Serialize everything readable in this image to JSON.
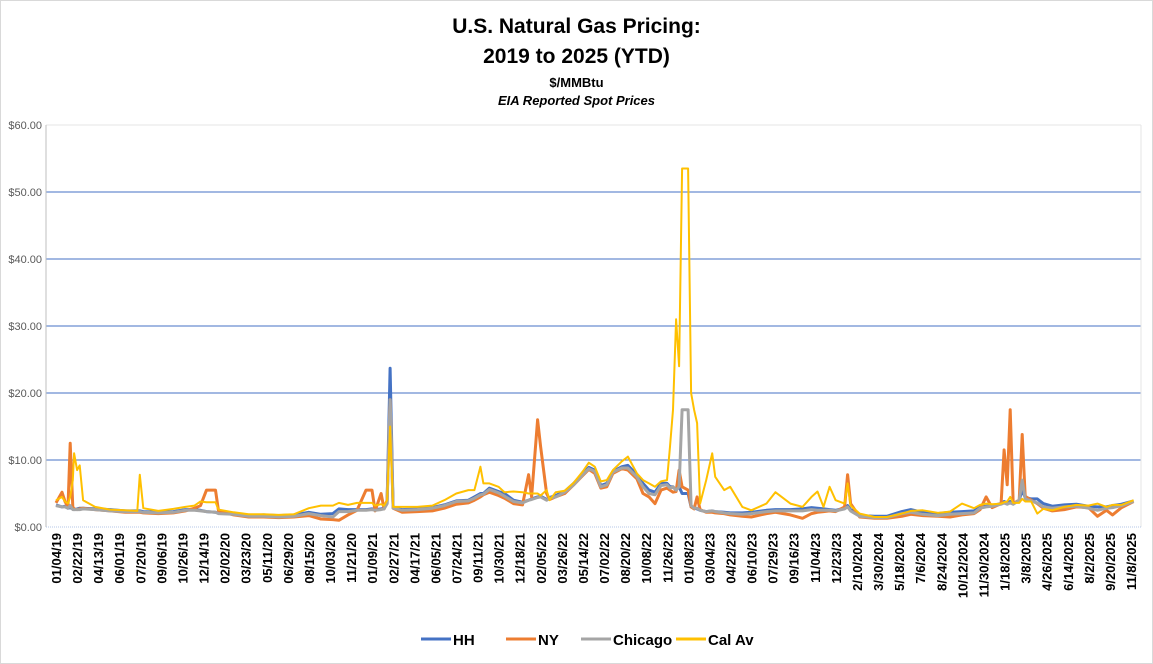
{
  "chart_data": {
    "type": "line",
    "title": "U.S. Natural Gas Pricing:",
    "title_line2": "2019 to 2025 (YTD)",
    "subtitle": "$/MMBtu",
    "subtitle2": "EIA Reported Spot Prices",
    "ylim": [
      0,
      60
    ],
    "yticks": [
      0,
      10,
      20,
      30,
      40,
      50,
      60
    ],
    "ytick_labels": [
      "$0.00",
      "$10.00",
      "$20.00",
      "$30.00",
      "$40.00",
      "$50.00",
      "$60.00"
    ],
    "grid": true,
    "legend_position": "bottom",
    "xtick_labels": [
      "01/04/19",
      "02/22/19",
      "04/13/19",
      "06/01/19",
      "07/20/19",
      "09/06/19",
      "10/26/19",
      "12/14/19",
      "02/02/20",
      "03/23/20",
      "05/11/20",
      "06/29/20",
      "08/15/20",
      "10/03/20",
      "11/21/20",
      "01/09/21",
      "02/27/21",
      "04/17/21",
      "06/05/21",
      "07/24/21",
      "09/11/21",
      "10/30/21",
      "12/18/21",
      "02/05/22",
      "03/26/22",
      "05/14/22",
      "07/02/22",
      "08/20/22",
      "10/08/22",
      "11/26/22",
      "01/08/23",
      "03/04/23",
      "04/22/23",
      "06/10/23",
      "07/29/23",
      "09/16/23",
      "11/04/23",
      "12/23/23",
      "2/10/2024",
      "3/30/2024",
      "5/18/2024",
      "7/6/2024",
      "8/24/2024",
      "10/12/2024",
      "11/30/2024",
      "1/18/2025",
      "3/8/2025",
      "4/26/2025",
      "6/14/2025",
      "8/2/2025",
      "9/20/2025",
      "11/8/2025"
    ],
    "xrange": [
      "2019-01-04",
      "2025-11-08"
    ],
    "series": [
      {
        "name": "HH",
        "color": "#4472C4"
      },
      {
        "name": "NY",
        "color": "#ED7D31"
      },
      {
        "name": "Chicago",
        "color": "#A5A5A5"
      },
      {
        "name": "Cal Av",
        "color": "#FFC000"
      }
    ],
    "columns": [
      "date",
      "HH",
      "NY",
      "Chicago",
      "Cal Av"
    ],
    "rows": [
      [
        "2019-01-04",
        3.3,
        3.6,
        3.2,
        4.0
      ],
      [
        "2019-01-18",
        3.0,
        5.2,
        3.0,
        4.5
      ],
      [
        "2019-01-25",
        3.1,
        3.8,
        3.0,
        3.8
      ],
      [
        "2019-02-01",
        2.8,
        3.0,
        2.8,
        3.5
      ],
      [
        "2019-02-06",
        2.9,
        12.5,
        3.2,
        4.5
      ],
      [
        "2019-02-12",
        2.7,
        3.0,
        2.6,
        7.0
      ],
      [
        "2019-02-15",
        2.6,
        2.7,
        2.6,
        11.0
      ],
      [
        "2019-02-22",
        2.7,
        2.6,
        2.6,
        8.5
      ],
      [
        "2019-02-28",
        2.8,
        2.7,
        2.6,
        9.2
      ],
      [
        "2019-03-08",
        2.8,
        2.8,
        2.7,
        4.0
      ],
      [
        "2019-04-05",
        2.7,
        2.6,
        2.6,
        3.0
      ],
      [
        "2019-05-10",
        2.6,
        2.4,
        2.4,
        2.6
      ],
      [
        "2019-06-14",
        2.4,
        2.2,
        2.3,
        2.5
      ],
      [
        "2019-07-12",
        2.4,
        2.2,
        2.3,
        2.4
      ],
      [
        "2019-07-18",
        2.4,
        2.2,
        2.3,
        7.8
      ],
      [
        "2019-07-26",
        2.3,
        2.1,
        2.2,
        2.8
      ],
      [
        "2019-08-30",
        2.2,
        2.0,
        2.1,
        2.4
      ],
      [
        "2019-10-04",
        2.3,
        2.1,
        2.2,
        2.7
      ],
      [
        "2019-11-01",
        2.6,
        2.4,
        2.5,
        3.0
      ],
      [
        "2019-11-22",
        2.6,
        2.8,
        2.5,
        3.2
      ],
      [
        "2019-12-06",
        2.5,
        3.2,
        2.4,
        3.8
      ],
      [
        "2019-12-20",
        2.3,
        5.5,
        2.3,
        3.7
      ],
      [
        "2020-01-10",
        2.2,
        5.5,
        2.2,
        3.7
      ],
      [
        "2020-01-17",
        2.1,
        2.4,
        2.0,
        2.6
      ],
      [
        "2020-02-21",
        1.9,
        1.8,
        1.9,
        2.2
      ],
      [
        "2020-03-27",
        1.7,
        1.5,
        1.6,
        1.9
      ],
      [
        "2020-05-01",
        1.8,
        1.5,
        1.6,
        1.9
      ],
      [
        "2020-06-05",
        1.7,
        1.4,
        1.5,
        1.8
      ],
      [
        "2020-07-10",
        1.8,
        1.5,
        1.6,
        1.9
      ],
      [
        "2020-08-14",
        2.2,
        1.7,
        2.0,
        2.8
      ],
      [
        "2020-09-11",
        1.9,
        1.2,
        1.7,
        3.2
      ],
      [
        "2020-10-09",
        2.0,
        1.1,
        1.5,
        3.2
      ],
      [
        "2020-10-23",
        2.7,
        1.0,
        2.3,
        3.6
      ],
      [
        "2020-11-13",
        2.6,
        1.8,
        2.3,
        3.3
      ],
      [
        "2020-12-04",
        2.6,
        2.5,
        2.5,
        3.6
      ],
      [
        "2020-12-25",
        2.6,
        5.5,
        2.5,
        3.6
      ],
      [
        "2021-01-08",
        2.7,
        5.5,
        2.6,
        3.6
      ],
      [
        "2021-01-15",
        2.6,
        2.4,
        2.5,
        3.2
      ],
      [
        "2021-01-29",
        2.7,
        5.0,
        2.6,
        3.4
      ],
      [
        "2021-02-05",
        2.8,
        2.7,
        2.7,
        3.2
      ],
      [
        "2021-02-12",
        3.5,
        4.0,
        3.5,
        4.0
      ],
      [
        "2021-02-19",
        23.7,
        19.0,
        19.0,
        15.0
      ],
      [
        "2021-02-26",
        2.9,
        2.8,
        2.8,
        3.0
      ],
      [
        "2021-03-19",
        2.6,
        2.2,
        2.5,
        3.0
      ],
      [
        "2021-04-23",
        2.7,
        2.3,
        2.6,
        3.0
      ],
      [
        "2021-05-28",
        2.9,
        2.4,
        2.8,
        3.2
      ],
      [
        "2021-06-25",
        3.3,
        2.8,
        3.2,
        4.0
      ],
      [
        "2021-07-23",
        3.9,
        3.4,
        3.8,
        5.0
      ],
      [
        "2021-08-20",
        4.0,
        3.6,
        3.9,
        5.5
      ],
      [
        "2021-09-03",
        4.5,
        4.0,
        4.3,
        5.5
      ],
      [
        "2021-09-17",
        5.0,
        4.5,
        4.8,
        9.0
      ],
      [
        "2021-09-24",
        5.0,
        4.8,
        4.9,
        6.5
      ],
      [
        "2021-10-08",
        5.8,
        5.2,
        5.6,
        6.5
      ],
      [
        "2021-10-29",
        5.3,
        4.7,
        5.1,
        6.0
      ],
      [
        "2021-11-12",
        5.0,
        4.3,
        4.6,
        5.2
      ],
      [
        "2021-12-03",
        4.0,
        3.5,
        3.8,
        5.3
      ],
      [
        "2021-12-24",
        3.7,
        3.3,
        3.6,
        5.2
      ],
      [
        "2022-01-07",
        4.0,
        7.8,
        4.0,
        5.0
      ],
      [
        "2022-01-14",
        4.2,
        4.5,
        4.1,
        5.0
      ],
      [
        "2022-01-28",
        4.5,
        16.0,
        4.4,
        5.0
      ],
      [
        "2022-02-04",
        4.6,
        12.0,
        4.5,
        4.7
      ],
      [
        "2022-02-18",
        4.1,
        5.0,
        4.0,
        5.5
      ],
      [
        "2022-02-25",
        4.4,
        4.1,
        4.3,
        4.0
      ],
      [
        "2022-03-11",
        4.7,
        4.5,
        4.5,
        5.2
      ],
      [
        "2022-04-01",
        5.3,
        5.0,
        5.2,
        5.4
      ],
      [
        "2022-04-22",
        6.5,
        6.3,
        6.3,
        6.6
      ],
      [
        "2022-05-13",
        8.0,
        7.7,
        7.8,
        8.3
      ],
      [
        "2022-05-27",
        8.9,
        8.6,
        8.7,
        9.6
      ],
      [
        "2022-06-10",
        8.5,
        8.0,
        8.3,
        9.0
      ],
      [
        "2022-06-24",
        6.2,
        5.8,
        6.0,
        6.8
      ],
      [
        "2022-07-08",
        6.5,
        6.0,
        6.3,
        7.0
      ],
      [
        "2022-07-22",
        8.3,
        8.0,
        8.2,
        8.5
      ],
      [
        "2022-08-12",
        9.0,
        8.7,
        8.8,
        9.8
      ],
      [
        "2022-08-26",
        9.2,
        8.5,
        8.8,
        10.5
      ],
      [
        "2022-09-16",
        7.8,
        7.2,
        7.5,
        8.0
      ],
      [
        "2022-09-30",
        6.5,
        5.0,
        6.0,
        7.0
      ],
      [
        "2022-10-14",
        5.5,
        4.5,
        5.0,
        6.5
      ],
      [
        "2022-10-28",
        5.2,
        3.5,
        4.8,
        6.0
      ],
      [
        "2022-11-11",
        6.5,
        5.5,
        6.2,
        6.8
      ],
      [
        "2022-11-25",
        6.5,
        5.8,
        6.3,
        7.0
      ],
      [
        "2022-12-02",
        6.0,
        5.5,
        5.8,
        12.0
      ],
      [
        "2022-12-09",
        6.0,
        5.2,
        6.0,
        17.5
      ],
      [
        "2022-12-16",
        5.5,
        5.3,
        5.5,
        31.0
      ],
      [
        "2022-12-23",
        6.0,
        8.5,
        6.0,
        24.0
      ],
      [
        "2022-12-30",
        5.0,
        6.0,
        17.5,
        53.5
      ],
      [
        "2023-01-13",
        5.0,
        5.5,
        17.5,
        53.5
      ],
      [
        "2023-01-20",
        3.0,
        3.0,
        3.2,
        20.0
      ],
      [
        "2023-01-27",
        2.8,
        2.7,
        2.8,
        17.5
      ],
      [
        "2023-02-03",
        2.7,
        4.5,
        2.8,
        15.5
      ],
      [
        "2023-02-10",
        2.5,
        2.6,
        2.5,
        3.5
      ],
      [
        "2023-02-24",
        2.3,
        2.2,
        2.3,
        7.0
      ],
      [
        "2023-03-10",
        2.4,
        2.2,
        2.4,
        11.0
      ],
      [
        "2023-03-17",
        2.3,
        2.1,
        2.3,
        7.5
      ],
      [
        "2023-04-07",
        2.2,
        2.0,
        2.1,
        5.5
      ],
      [
        "2023-04-21",
        2.1,
        1.8,
        2.0,
        6.0
      ],
      [
        "2023-05-19",
        2.1,
        1.6,
        1.9,
        3.0
      ],
      [
        "2023-06-09",
        2.2,
        1.5,
        2.0,
        2.5
      ],
      [
        "2023-07-14",
        2.5,
        2.0,
        2.3,
        3.5
      ],
      [
        "2023-08-04",
        2.6,
        2.2,
        2.4,
        5.2
      ],
      [
        "2023-09-08",
        2.6,
        1.8,
        2.4,
        3.5
      ],
      [
        "2023-10-06",
        2.7,
        1.3,
        2.4,
        3.0
      ],
      [
        "2023-10-27",
        2.9,
        2.0,
        2.6,
        4.5
      ],
      [
        "2023-11-10",
        2.8,
        2.2,
        2.5,
        5.3
      ],
      [
        "2023-11-24",
        2.7,
        2.3,
        2.5,
        3.0
      ],
      [
        "2023-12-08",
        2.6,
        2.4,
        2.5,
        6.0
      ],
      [
        "2023-12-22",
        2.5,
        2.3,
        2.4,
        4.0
      ],
      [
        "2024-01-12",
        2.8,
        3.0,
        2.7,
        3.5
      ],
      [
        "2024-01-19",
        3.2,
        7.8,
        3.0,
        6.5
      ],
      [
        "2024-01-26",
        2.6,
        3.5,
        2.4,
        3.2
      ],
      [
        "2024-02-16",
        1.7,
        1.5,
        1.6,
        2.0
      ],
      [
        "2024-03-22",
        1.6,
        1.3,
        1.4,
        1.5
      ],
      [
        "2024-04-19",
        1.6,
        1.3,
        1.4,
        1.5
      ],
      [
        "2024-05-24",
        2.3,
        1.6,
        2.0,
        2.0
      ],
      [
        "2024-06-14",
        2.6,
        1.9,
        2.2,
        2.4
      ],
      [
        "2024-07-12",
        2.2,
        1.7,
        1.9,
        2.5
      ],
      [
        "2024-08-16",
        2.0,
        1.6,
        1.7,
        2.1
      ],
      [
        "2024-09-13",
        2.2,
        1.5,
        1.9,
        2.3
      ],
      [
        "2024-10-11",
        2.3,
        1.8,
        2.0,
        3.5
      ],
      [
        "2024-11-08",
        2.4,
        2.0,
        2.1,
        2.8
      ],
      [
        "2024-11-22",
        3.0,
        2.6,
        2.8,
        3.3
      ],
      [
        "2024-12-06",
        3.1,
        4.5,
        3.0,
        3.5
      ],
      [
        "2024-12-20",
        3.2,
        2.9,
        3.1,
        3.4
      ],
      [
        "2025-01-10",
        3.5,
        3.5,
        3.4,
        3.5
      ],
      [
        "2025-01-17",
        3.8,
        11.5,
        3.6,
        3.7
      ],
      [
        "2025-01-24",
        3.6,
        6.3,
        3.4,
        3.8
      ],
      [
        "2025-01-31",
        3.8,
        17.5,
        3.6,
        4.5
      ],
      [
        "2025-02-07",
        3.5,
        3.5,
        3.4,
        3.6
      ],
      [
        "2025-02-21",
        4.0,
        4.0,
        4.0,
        3.6
      ],
      [
        "2025-02-28",
        5.5,
        13.8,
        7.0,
        4.2
      ],
      [
        "2025-03-07",
        4.4,
        4.6,
        4.2,
        3.8
      ],
      [
        "2025-03-21",
        4.2,
        4.0,
        3.9,
        3.8
      ],
      [
        "2025-04-04",
        4.2,
        3.5,
        3.6,
        2.0
      ],
      [
        "2025-04-18",
        3.5,
        2.8,
        3.0,
        2.7
      ],
      [
        "2025-05-09",
        3.1,
        2.4,
        2.8,
        2.5
      ],
      [
        "2025-06-06",
        3.3,
        2.6,
        3.0,
        3.0
      ],
      [
        "2025-07-04",
        3.4,
        3.0,
        3.1,
        3.3
      ],
      [
        "2025-08-01",
        3.1,
        2.9,
        2.8,
        3.2
      ],
      [
        "2025-08-22",
        3.0,
        1.6,
        2.5,
        3.5
      ],
      [
        "2025-09-12",
        3.0,
        2.5,
        2.8,
        3.0
      ],
      [
        "2025-09-26",
        3.2,
        1.8,
        2.9,
        3.3
      ],
      [
        "2025-10-17",
        3.4,
        2.9,
        3.2,
        3.3
      ],
      [
        "2025-11-14",
        3.9,
        3.8,
        3.8,
        4.0
      ]
    ]
  }
}
